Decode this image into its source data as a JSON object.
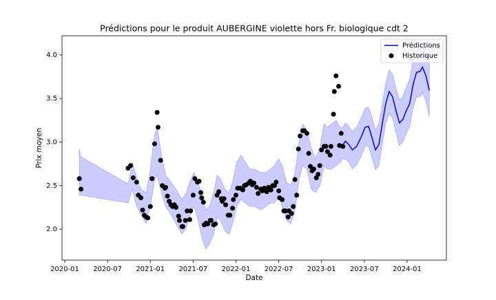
{
  "chart_data": {
    "type": "forecast",
    "title": "Prédictions pour le produit AUBERGINE violette hors Fr. biologique cdt 2",
    "x_label": "Date",
    "y_label": "Prix moyen",
    "xlim": [
      2019.968,
      2024.459
    ],
    "ylim": [
      1.645,
      4.22
    ],
    "xticks": [
      {
        "value": 2020.0,
        "label": "2020-01"
      },
      {
        "value": 2020.5,
        "label": "2020-07"
      },
      {
        "value": 2021.0,
        "label": "2021-01"
      },
      {
        "value": 2021.5,
        "label": "2021-07"
      },
      {
        "value": 2022.0,
        "label": "2022-01"
      },
      {
        "value": 2022.5,
        "label": "2022-07"
      },
      {
        "value": 2023.0,
        "label": "2023-01"
      },
      {
        "value": 2023.5,
        "label": "2023-07"
      },
      {
        "value": 2024.0,
        "label": "2024-01"
      }
    ],
    "yticks": [
      {
        "value": 2,
        "label": "2.0"
      },
      2.5,
      {
        "value": 3,
        "label": "3.0"
      },
      3.5,
      {
        "value": 4,
        "label": "4.0"
      }
    ],
    "legend": "upper right",
    "interval": {
      "color": "#0000ff",
      "opacity": 0.2,
      "x": [
        2020.17,
        2020.19,
        2020.74,
        2020.79,
        2020.84,
        2020.89,
        2020.95,
        2021.0,
        2021.05,
        2021.08,
        2021.13,
        2021.18,
        2021.24,
        2021.3,
        2021.37,
        2021.42,
        2021.46,
        2021.51,
        2021.56,
        2021.61,
        2021.65,
        2021.69,
        2021.74,
        2021.78,
        2021.82,
        2021.87,
        2021.92,
        2021.96,
        2022.01,
        2022.06,
        2022.11,
        2022.16,
        2022.22,
        2022.29,
        2022.35,
        2022.4,
        2022.45,
        2022.5,
        2022.54,
        2022.59,
        2022.64,
        2022.69,
        2022.74,
        2022.78,
        2022.83,
        2022.88,
        2022.93,
        2022.98,
        2023.03,
        2023.07,
        2023.12,
        2023.17,
        2023.22,
        2023.25,
        2023.28,
        2023.32,
        2023.36,
        2023.41,
        2023.46,
        2023.51,
        2023.55,
        2023.59,
        2023.63,
        2023.67,
        2023.71,
        2023.75,
        2023.79,
        2023.83,
        2023.87,
        2023.91,
        2023.95,
        2023.99,
        2024.03,
        2024.07,
        2024.11,
        2024.15,
        2024.18,
        2024.22,
        2024.26
      ],
      "upper": [
        2.92,
        2.83,
        2.52,
        2.77,
        2.59,
        2.46,
        2.42,
        2.69,
        3.09,
        3.17,
        2.85,
        2.62,
        2.54,
        2.46,
        2.34,
        2.42,
        2.54,
        2.65,
        2.54,
        2.34,
        2.22,
        2.26,
        2.42,
        2.62,
        2.58,
        2.46,
        2.42,
        2.54,
        2.77,
        2.85,
        2.77,
        2.69,
        2.69,
        2.65,
        2.65,
        2.69,
        2.73,
        2.81,
        2.73,
        2.54,
        2.5,
        2.65,
        3.01,
        3.21,
        3.13,
        2.93,
        2.81,
        2.93,
        3.21,
        3.17,
        3.21,
        3.25,
        3.17,
        3.17,
        3.22,
        3.18,
        3.12,
        3.17,
        3.27,
        3.39,
        3.4,
        3.28,
        3.14,
        3.21,
        3.44,
        3.68,
        3.83,
        3.78,
        3.62,
        3.48,
        3.52,
        3.63,
        3.72,
        3.94,
        4.07,
        4.11,
        4.15,
        4.05,
        3.89
      ],
      "lower": [
        2.39,
        2.39,
        2.3,
        2.46,
        2.26,
        2.17,
        2.06,
        2.26,
        2.56,
        2.62,
        2.42,
        2.26,
        2.17,
        2.06,
        1.94,
        2.02,
        2.14,
        2.26,
        2.1,
        1.87,
        1.77,
        1.83,
        1.94,
        2.14,
        2.1,
        1.98,
        1.94,
        2.06,
        2.26,
        2.34,
        2.3,
        2.26,
        2.26,
        2.22,
        2.26,
        2.3,
        2.3,
        2.38,
        2.26,
        2.1,
        2.06,
        2.22,
        2.58,
        2.73,
        2.69,
        2.46,
        2.42,
        2.5,
        2.73,
        2.69,
        2.69,
        2.73,
        2.77,
        2.81,
        2.8,
        2.77,
        2.69,
        2.74,
        2.83,
        2.95,
        2.95,
        2.82,
        2.68,
        2.73,
        2.97,
        3.21,
        3.33,
        3.27,
        3.11,
        2.96,
        3.0,
        3.1,
        3.17,
        3.39,
        3.52,
        3.52,
        3.57,
        3.47,
        3.29
      ]
    },
    "series": [
      {
        "name": "Prédictions",
        "color": "#0000ff",
        "kind": "line",
        "x": [
          2023.25,
          2023.28,
          2023.32,
          2023.36,
          2023.41,
          2023.46,
          2023.51,
          2023.55,
          2023.59,
          2023.63,
          2023.67,
          2023.71,
          2023.75,
          2023.79,
          2023.83,
          2023.87,
          2023.91,
          2023.95,
          2023.99,
          2024.03,
          2024.07,
          2024.11,
          2024.15,
          2024.18,
          2024.22,
          2024.26
        ],
        "values": [
          2.97,
          3.01,
          2.97,
          2.91,
          2.95,
          3.05,
          3.17,
          3.18,
          3.05,
          2.91,
          2.97,
          3.21,
          3.44,
          3.58,
          3.52,
          3.36,
          3.22,
          3.26,
          3.36,
          3.44,
          3.66,
          3.8,
          3.81,
          3.86,
          3.76,
          3.59
        ]
      },
      {
        "name": "Historique",
        "color": "#000000",
        "kind": "scatter",
        "x": [
          2020.17,
          2020.19,
          2020.74,
          2020.77,
          2020.8,
          2020.84,
          2020.86,
          2020.89,
          2020.91,
          2020.93,
          2020.95,
          2020.97,
          2021.0,
          2021.02,
          2021.05,
          2021.08,
          2021.09,
          2021.12,
          2021.14,
          2021.17,
          2021.18,
          2021.2,
          2021.22,
          2021.24,
          2021.26,
          2021.28,
          2021.3,
          2021.33,
          2021.34,
          2021.37,
          2021.38,
          2021.41,
          2021.43,
          2021.46,
          2021.47,
          2021.5,
          2021.52,
          2021.55,
          2021.57,
          2021.59,
          2021.6,
          2021.62,
          2021.63,
          2021.65,
          2021.67,
          2021.7,
          2021.71,
          2021.74,
          2021.76,
          2021.78,
          2021.8,
          2021.83,
          2021.84,
          2021.86,
          2021.88,
          2021.91,
          2021.93,
          2021.96,
          2021.97,
          2022.0,
          2022.02,
          2022.05,
          2022.08,
          2022.1,
          2022.12,
          2022.15,
          2022.17,
          2022.19,
          2022.21,
          2022.24,
          2022.26,
          2022.29,
          2022.31,
          2022.33,
          2022.36,
          2022.38,
          2022.41,
          2022.43,
          2022.45,
          2022.47,
          2022.5,
          2022.51,
          2022.54,
          2022.56,
          2022.58,
          2022.61,
          2022.62,
          2022.65,
          2022.67,
          2022.69,
          2022.71,
          2022.73,
          2022.75,
          2022.78,
          2022.8,
          2022.83,
          2022.85,
          2022.87,
          2022.89,
          2022.91,
          2022.94,
          2022.96,
          2022.98,
          2023.0,
          2023.03,
          2023.05,
          2023.07,
          2023.1,
          2023.11,
          2023.14,
          2023.15,
          2023.17,
          2023.2,
          2023.21,
          2023.23,
          2023.25
        ],
        "values": [
          2.58,
          2.46,
          2.7,
          2.73,
          2.59,
          2.54,
          2.39,
          2.36,
          2.22,
          2.16,
          2.14,
          2.13,
          2.26,
          2.58,
          2.98,
          3.34,
          3.17,
          2.79,
          2.5,
          2.47,
          2.48,
          2.38,
          2.32,
          2.28,
          2.26,
          2.28,
          2.25,
          2.15,
          2.1,
          2.03,
          2.03,
          2.1,
          2.21,
          2.11,
          2.21,
          2.39,
          2.58,
          2.54,
          2.55,
          2.42,
          2.36,
          2.31,
          2.05,
          2.07,
          2.06,
          2.1,
          2.1,
          2.05,
          2.06,
          2.39,
          2.43,
          2.35,
          2.32,
          2.35,
          2.28,
          2.16,
          2.16,
          2.24,
          2.34,
          2.39,
          2.47,
          2.47,
          2.45,
          2.5,
          2.51,
          2.53,
          2.55,
          2.51,
          2.53,
          2.48,
          2.41,
          2.46,
          2.44,
          2.47,
          2.43,
          2.48,
          2.45,
          2.5,
          2.5,
          2.54,
          2.44,
          2.36,
          2.34,
          2.21,
          2.21,
          2.14,
          2.21,
          2.18,
          2.26,
          2.57,
          2.39,
          2.92,
          3.07,
          3.13,
          3.13,
          3.1,
          2.87,
          2.72,
          2.67,
          2.69,
          2.59,
          2.63,
          2.73,
          2.91,
          2.95,
          2.95,
          2.89,
          2.85,
          2.95,
          3.32,
          3.58,
          3.76,
          3.64,
          2.96,
          3.1,
          2.95
        ]
      }
    ]
  }
}
